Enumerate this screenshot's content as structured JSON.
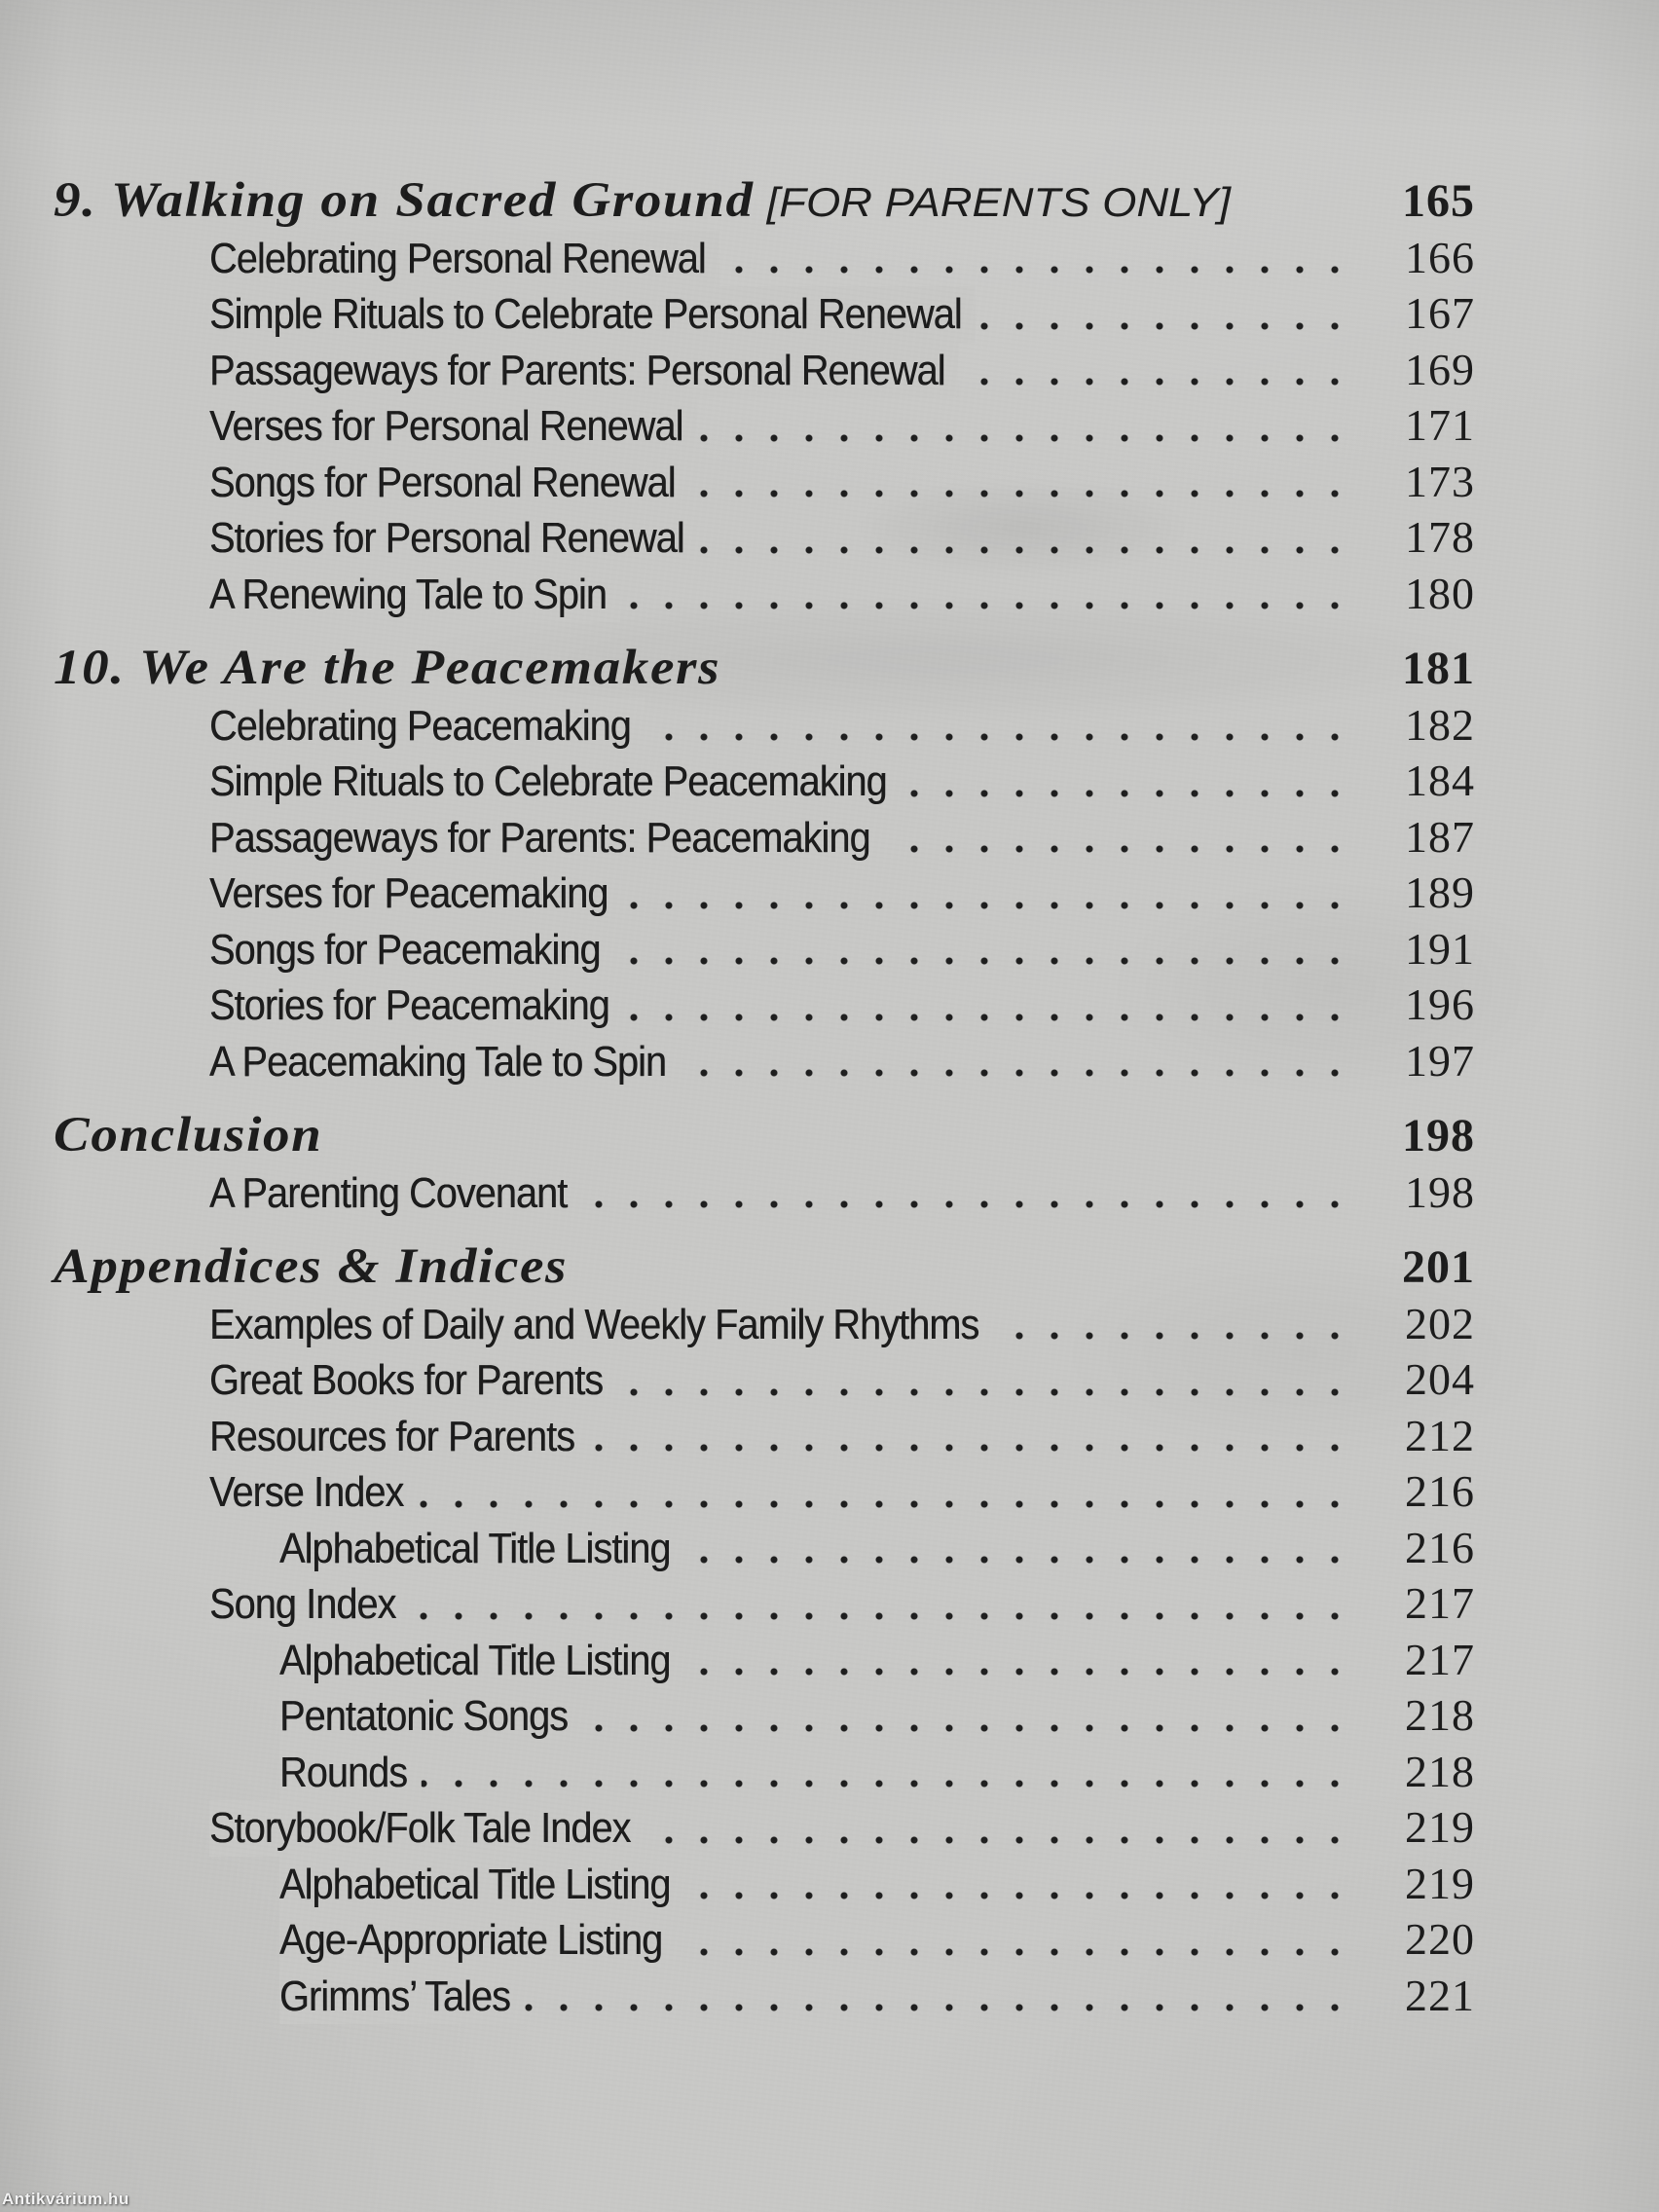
{
  "page": {
    "kind": "book-table-of-contents-scan"
  },
  "colors": {
    "paper": "#c8c8c6",
    "ink": "#1b1b1b"
  },
  "watermark": {
    "label": "Antikvárium.hu"
  },
  "toc": {
    "sections": [
      {
        "number": "9.",
        "title": "Walking on Sacred Ground",
        "suffix": "[FOR PARENTS ONLY]",
        "page": "165",
        "entries": [
          {
            "title": "Celebrating Personal Renewal",
            "page": "166",
            "level": 1
          },
          {
            "title": "Simple Rituals to Celebrate Personal Renewal",
            "page": "167",
            "level": 1
          },
          {
            "title": "Passageways for Parents: Personal Renewal",
            "page": "169",
            "level": 1
          },
          {
            "title": "Verses for Personal Renewal",
            "page": "171",
            "level": 1
          },
          {
            "title": "Songs for Personal Renewal",
            "page": "173",
            "level": 1
          },
          {
            "title": "Stories for Personal Renewal",
            "page": "178",
            "level": 1
          },
          {
            "title": "A Renewing Tale to Spin",
            "page": "180",
            "level": 1
          }
        ]
      },
      {
        "number": "10.",
        "title": "We Are the Peacemakers",
        "suffix": "",
        "page": "181",
        "entries": [
          {
            "title": "Celebrating Peacemaking",
            "page": "182",
            "level": 1
          },
          {
            "title": "Simple Rituals to Celebrate Peacemaking",
            "page": "184",
            "level": 1
          },
          {
            "title": "Passageways for Parents: Peacemaking",
            "page": "187",
            "level": 1
          },
          {
            "title": "Verses for Peacemaking",
            "page": "189",
            "level": 1
          },
          {
            "title": "Songs for Peacemaking",
            "page": "191",
            "level": 1
          },
          {
            "title": "Stories for Peacemaking",
            "page": "196",
            "level": 1
          },
          {
            "title": "A Peacemaking Tale to Spin",
            "page": "197",
            "level": 1
          }
        ]
      },
      {
        "number": "",
        "title": "Conclusion",
        "suffix": "",
        "page": "198",
        "entries": [
          {
            "title": "A Parenting Covenant",
            "page": "198",
            "level": 1
          }
        ]
      },
      {
        "number": "",
        "title": "Appendices & Indices",
        "suffix": "",
        "page": "201",
        "entries": [
          {
            "title": "Examples of Daily and Weekly Family Rhythms",
            "page": "202",
            "level": 1
          },
          {
            "title": "Great Books for Parents",
            "page": "204",
            "level": 1
          },
          {
            "title": "Resources for Parents",
            "page": "212",
            "level": 1
          },
          {
            "title": "Verse Index",
            "page": "216",
            "level": 1
          },
          {
            "title": "Alphabetical Title Listing",
            "page": "216",
            "level": 2
          },
          {
            "title": "Song Index",
            "page": "217",
            "level": 1
          },
          {
            "title": "Alphabetical Title Listing",
            "page": "217",
            "level": 2
          },
          {
            "title": "Pentatonic Songs",
            "page": "218",
            "level": 2
          },
          {
            "title": "Rounds",
            "page": "218",
            "level": 2
          },
          {
            "title": "Storybook/Folk Tale Index",
            "page": "219",
            "level": 1
          },
          {
            "title": "Alphabetical Title Listing",
            "page": "219",
            "level": 2
          },
          {
            "title": "Age-Appropriate Listing",
            "page": "220",
            "level": 2
          },
          {
            "title": "Grimms’ Tales",
            "page": "221",
            "level": 2
          }
        ]
      }
    ]
  }
}
